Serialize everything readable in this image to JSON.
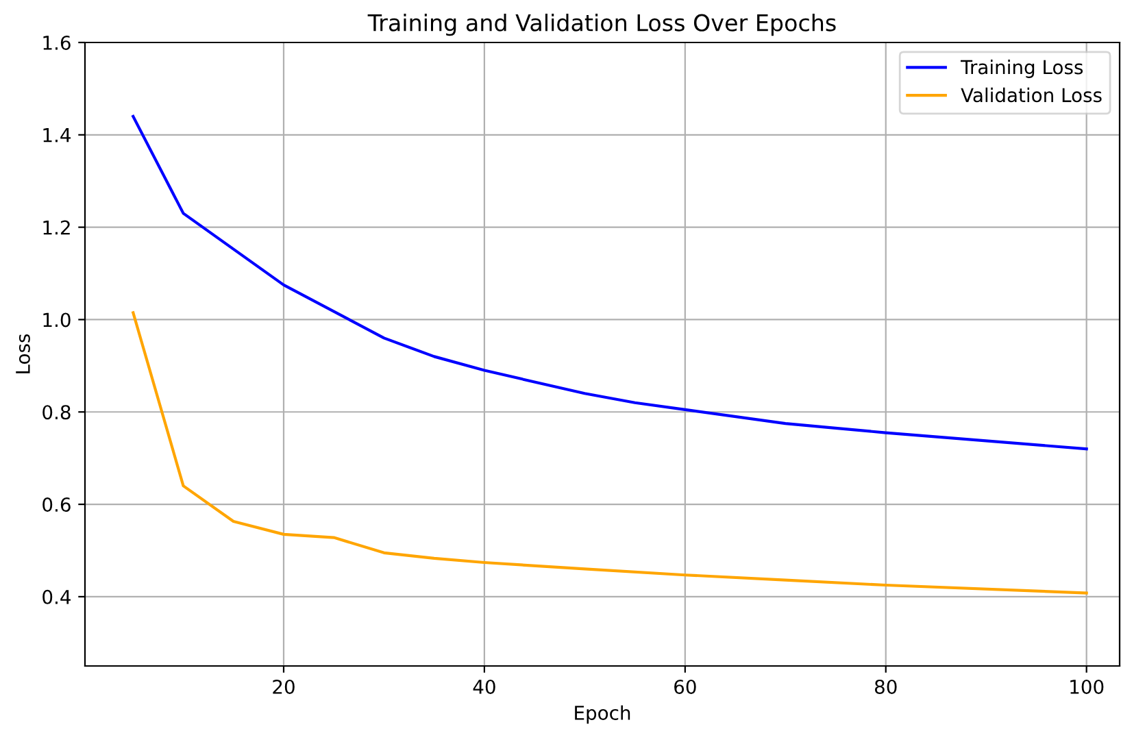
{
  "chart_data": {
    "type": "line",
    "title": "Training and Validation Loss Over Epochs",
    "xlabel": "Epoch",
    "ylabel": "Loss",
    "series": [
      {
        "name": "Training Loss",
        "color": "#0000ff",
        "x": [
          5,
          10,
          20,
          30,
          35,
          40,
          50,
          55,
          60,
          70,
          75,
          80,
          100
        ],
        "values": [
          1.44,
          1.23,
          1.075,
          0.96,
          0.92,
          0.89,
          0.84,
          0.82,
          0.805,
          0.775,
          0.765,
          0.755,
          0.72
        ]
      },
      {
        "name": "Validation Loss",
        "color": "#ffa500",
        "x": [
          5,
          10,
          15,
          20,
          25,
          30,
          35,
          40,
          50,
          60,
          70,
          80,
          100
        ],
        "values": [
          1.015,
          0.64,
          0.563,
          0.535,
          0.528,
          0.495,
          0.483,
          0.474,
          0.46,
          0.447,
          0.436,
          0.425,
          0.408
        ]
      }
    ],
    "xlim": [
      0.2,
      103.3
    ],
    "ylim": [
      0.25,
      1.6
    ],
    "xticks": [
      20,
      40,
      60,
      80,
      100
    ],
    "yticks": [
      0.4,
      0.6,
      0.8,
      {
        "value": 1,
        "label": "1.0"
      },
      1.2,
      1.4,
      1.6
    ],
    "grid": true,
    "legend": "top right",
    "marker": "none",
    "line_style": "solid"
  }
}
